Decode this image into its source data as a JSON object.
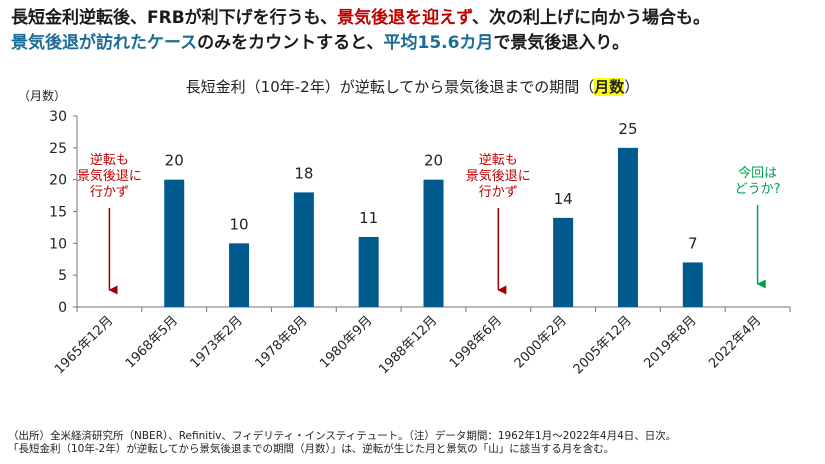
{
  "headline": {
    "line1_a": "長短金利逆転後、FRBが利下げを行うも、",
    "line1_red": "景気後退を迎えず",
    "line1_b": "、次の利上げに向かう場合も。",
    "line2_a": "景気後退が訪れたケース",
    "line2_b": "のみをカウントすると、",
    "line2_c": "平均15.6カ月",
    "line2_d": "で景気後退入り。"
  },
  "colors": {
    "bar": "#005a8c",
    "red": "#c00000",
    "teal": "#1b6c96",
    "arrow_red": "#a00000",
    "arrow_green": "#00a04b"
  },
  "chart_data": {
    "type": "bar",
    "subtitle_main": "長短金利（10年-2年）が逆転してから景気後退までの期間（",
    "subtitle_highlight": "月数",
    "subtitle_end": "）",
    "ylabel": "（月数）",
    "ylim": [
      0,
      30
    ],
    "yticks": [
      0,
      5,
      10,
      15,
      20,
      25,
      30
    ],
    "categories": [
      "1965年12月",
      "1968年5月",
      "1973年2月",
      "1978年8月",
      "1980年9月",
      "1988年12月",
      "1998年6月",
      "2000年2月",
      "2005年12月",
      "2019年8月",
      "2022年4月"
    ],
    "values": [
      null,
      20,
      10,
      18,
      11,
      20,
      null,
      14,
      25,
      7,
      null
    ],
    "annotations": [
      {
        "category": "1965年12月",
        "lines": [
          "逆転も",
          "景気後退に",
          "行かず"
        ],
        "color": "red"
      },
      {
        "category": "1998年6月",
        "lines": [
          "逆転も",
          "景気後退に",
          "行かず"
        ],
        "color": "red"
      },
      {
        "category": "2022年4月",
        "lines": [
          "今回は",
          "どうか?"
        ],
        "color": "green"
      }
    ]
  },
  "footnote": {
    "line1": "（出所）全米経済研究所（NBER）、Refinitiv、フィデリティ・インスティテュート。（注）データ期間：1962年1月～2022年4月4日、日次。",
    "line2": "「長短金利（10年-2年）が逆転してから景気後退までの期間（月数）」は、逆転が生じた月と景気の「山」に該当する月を含む。"
  }
}
